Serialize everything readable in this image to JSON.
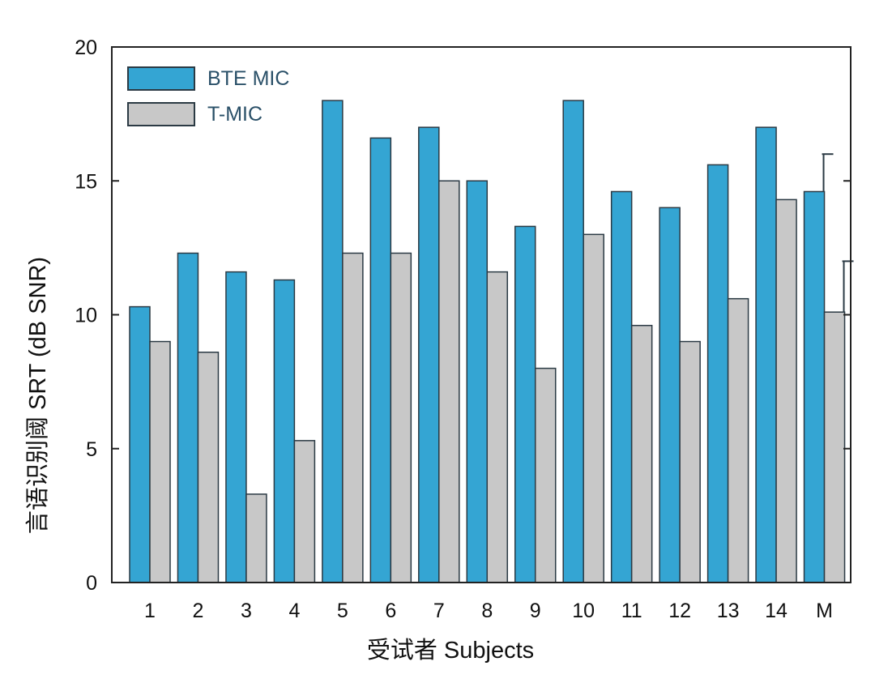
{
  "colors": {
    "bte_fill": "#34a5d3",
    "tmic_fill": "#c8c8c8",
    "bar_stroke": "#2b3a44",
    "axis": "#222222",
    "legend_text": "#2a5068"
  },
  "chart_data": {
    "type": "bar",
    "title": "",
    "xlabel": "受试者 Subjects",
    "ylabel": "言语识别阈 SRT (dB SNR)",
    "ylim": [
      0,
      20
    ],
    "yticks": [
      0,
      5,
      10,
      15,
      20
    ],
    "grid": false,
    "legend_position": "top-left",
    "categories": [
      "1",
      "2",
      "3",
      "4",
      "5",
      "6",
      "7",
      "8",
      "9",
      "10",
      "11",
      "12",
      "13",
      "14",
      "M"
    ],
    "series": [
      {
        "name": "BTE MIC",
        "values": [
          10.3,
          12.3,
          11.6,
          11.3,
          18.0,
          16.6,
          17.0,
          15.0,
          13.3,
          18.0,
          14.6,
          14.0,
          15.6,
          17.0,
          14.6
        ],
        "error": [
          null,
          null,
          null,
          null,
          null,
          null,
          null,
          null,
          null,
          null,
          null,
          null,
          null,
          null,
          1.4
        ]
      },
      {
        "name": "T-MIC",
        "values": [
          9.0,
          8.6,
          3.3,
          5.3,
          12.3,
          12.3,
          15.0,
          11.6,
          8.0,
          13.0,
          9.6,
          9.0,
          10.6,
          14.3,
          10.1
        ],
        "error": [
          null,
          null,
          null,
          null,
          null,
          null,
          null,
          null,
          null,
          null,
          null,
          null,
          null,
          null,
          1.9
        ]
      }
    ]
  }
}
